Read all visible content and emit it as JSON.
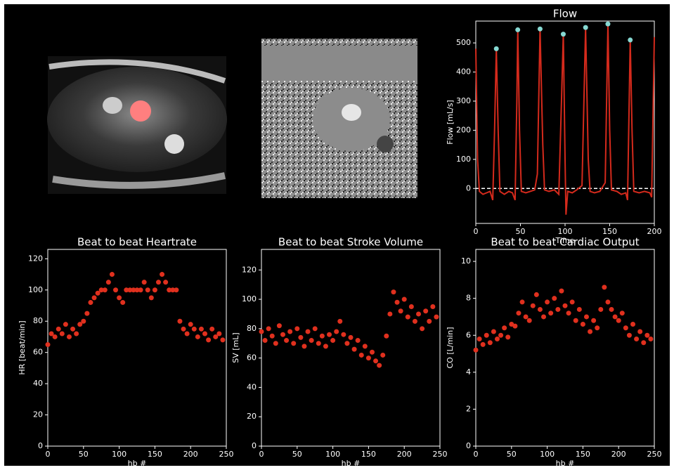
{
  "chart_data": [
    {
      "type": "line",
      "title": "Flow",
      "xlabel": "Time",
      "ylabel": "Flow [mL/s]",
      "xlim": [
        0,
        200
      ],
      "ylim": [
        -120,
        575
      ],
      "xticks": [
        0,
        50,
        100,
        150,
        200
      ],
      "yticks": [
        0,
        100,
        200,
        300,
        400,
        500
      ],
      "hline": 0,
      "series": [
        {
          "color": "#d42a1c",
          "x": [
            0,
            2,
            4,
            8,
            12,
            16,
            19,
            21,
            23,
            25,
            27,
            32,
            37,
            41,
            44,
            46,
            47,
            49,
            51,
            56,
            61,
            66,
            69,
            72,
            75,
            77,
            82,
            88,
            93,
            96,
            98,
            100,
            101,
            103,
            108,
            113,
            119,
            123,
            126,
            128,
            133,
            139,
            145,
            148,
            150,
            152,
            158,
            163,
            168,
            170,
            173,
            175,
            177,
            183,
            189,
            195,
            197,
            200
          ],
          "values": [
            480,
            100,
            -10,
            -20,
            -15,
            -10,
            -40,
            200,
            480,
            200,
            -10,
            -20,
            -10,
            -15,
            -40,
            300,
            545,
            200,
            -10,
            -15,
            -10,
            -5,
            50,
            548,
            150,
            -5,
            -10,
            -5,
            -20,
            300,
            530,
            100,
            -90,
            -10,
            -15,
            -5,
            10,
            553,
            100,
            -10,
            -15,
            -10,
            20,
            565,
            200,
            -5,
            -10,
            -20,
            -15,
            -40,
            510,
            200,
            -10,
            -15,
            -10,
            -15,
            -30,
            520
          ]
        },
        {
          "color": "#86d8d2",
          "marker": true,
          "x": [
            23,
            47,
            72,
            98,
            123,
            148,
            173
          ],
          "values": [
            480,
            545,
            548,
            530,
            553,
            565,
            510
          ]
        }
      ]
    },
    {
      "type": "scatter",
      "title": "Beat to beat Heartrate",
      "xlabel": "hb #",
      "ylabel": "HR [beat/min]",
      "color": "#e0301e",
      "xlim": [
        0,
        250
      ],
      "ylim": [
        0,
        126
      ],
      "xticks": [
        0,
        50,
        100,
        150,
        200,
        250
      ],
      "yticks": [
        0,
        20,
        40,
        60,
        80,
        100,
        120
      ],
      "x": [
        0,
        5,
        10,
        15,
        20,
        25,
        30,
        35,
        40,
        45,
        50,
        55,
        60,
        65,
        70,
        75,
        80,
        85,
        90,
        95,
        100,
        105,
        110,
        115,
        120,
        125,
        130,
        135,
        140,
        145,
        150,
        155,
        160,
        165,
        170,
        175,
        180,
        185,
        190,
        195,
        200,
        205,
        210,
        215,
        220,
        225,
        230,
        235,
        240,
        245
      ],
      "values": [
        65,
        72,
        70,
        75,
        72,
        78,
        70,
        75,
        72,
        78,
        80,
        85,
        92,
        95,
        98,
        100,
        100,
        105,
        110,
        100,
        95,
        92,
        100,
        100,
        100,
        100,
        100,
        105,
        100,
        95,
        100,
        105,
        110,
        105,
        100,
        100,
        100,
        80,
        75,
        72,
        78,
        75,
        70,
        75,
        72,
        68,
        75,
        70,
        72,
        68
      ]
    },
    {
      "type": "scatter",
      "title": "Beat to beat Stroke Volume",
      "xlabel": "hb #",
      "ylabel": "SV [mL]",
      "color": "#e0301e",
      "xlim": [
        0,
        250
      ],
      "ylim": [
        0,
        134
      ],
      "xticks": [
        0,
        50,
        100,
        150,
        200,
        250
      ],
      "yticks": [
        0,
        20,
        40,
        60,
        80,
        100,
        120
      ],
      "x": [
        0,
        5,
        10,
        15,
        20,
        25,
        30,
        35,
        40,
        45,
        50,
        55,
        60,
        65,
        70,
        75,
        80,
        85,
        90,
        95,
        100,
        105,
        110,
        115,
        120,
        125,
        130,
        135,
        140,
        145,
        150,
        155,
        160,
        165,
        170,
        175,
        180,
        185,
        190,
        195,
        200,
        205,
        210,
        215,
        220,
        225,
        230,
        235,
        240,
        245
      ],
      "values": [
        78,
        72,
        80,
        75,
        70,
        82,
        76,
        72,
        78,
        70,
        80,
        74,
        68,
        78,
        72,
        80,
        70,
        75,
        68,
        76,
        72,
        78,
        85,
        76,
        70,
        74,
        66,
        72,
        62,
        68,
        60,
        64,
        58,
        55,
        62,
        75,
        90,
        105,
        98,
        92,
        100,
        88,
        95,
        85,
        90,
        80,
        92,
        85,
        95,
        88
      ]
    },
    {
      "type": "scatter",
      "title": "Beat to beat Cardiac Output",
      "xlabel": "hb #",
      "ylabel": "CO [L/min]",
      "color": "#e0301e",
      "xlim": [
        0,
        250
      ],
      "ylim": [
        0,
        10.65
      ],
      "xticks": [
        0,
        50,
        100,
        150,
        200,
        250
      ],
      "yticks": [
        0,
        2,
        4,
        6,
        8,
        10
      ],
      "x": [
        0,
        5,
        10,
        15,
        20,
        25,
        30,
        35,
        40,
        45,
        50,
        55,
        60,
        65,
        70,
        75,
        80,
        85,
        90,
        95,
        100,
        105,
        110,
        115,
        120,
        125,
        130,
        135,
        140,
        145,
        150,
        155,
        160,
        165,
        170,
        175,
        180,
        185,
        190,
        195,
        200,
        205,
        210,
        215,
        220,
        225,
        230,
        235,
        240,
        245
      ],
      "values": [
        5.2,
        5.8,
        5.5,
        6.0,
        5.6,
        6.2,
        5.8,
        6.0,
        6.4,
        5.9,
        6.6,
        6.5,
        7.2,
        7.8,
        7.0,
        6.8,
        7.6,
        8.2,
        7.4,
        7.0,
        7.8,
        7.2,
        8.0,
        7.4,
        8.4,
        7.6,
        7.2,
        7.8,
        6.8,
        7.4,
        6.6,
        7.0,
        6.2,
        6.8,
        6.4,
        7.4,
        8.6,
        7.8,
        7.4,
        7.0,
        6.8,
        7.2,
        6.4,
        6.0,
        6.6,
        5.8,
        6.2,
        5.6,
        6.0,
        5.8
      ]
    }
  ]
}
